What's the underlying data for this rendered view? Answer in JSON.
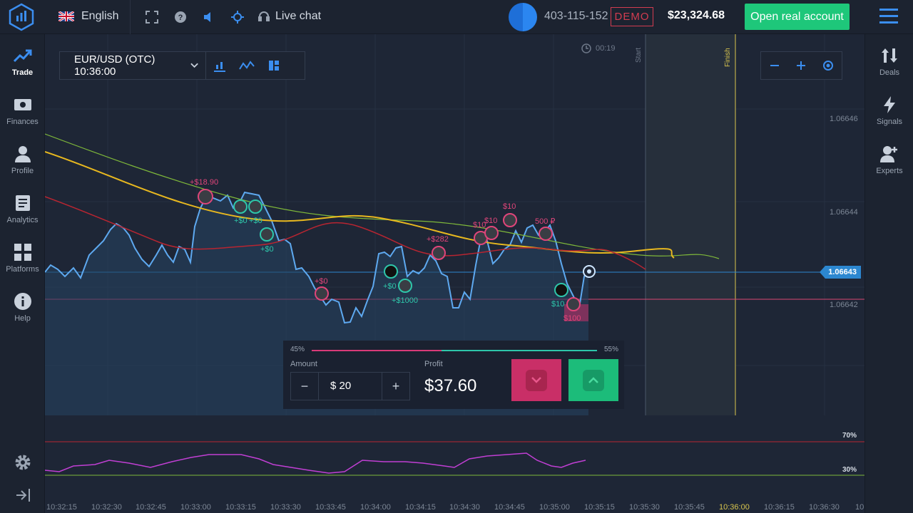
{
  "header": {
    "language": "English",
    "live_chat": "Live chat",
    "user_id": "403-115-152",
    "mode_badge": "DEMO",
    "balance": "$23,324.68",
    "open_real_account": "Open real account",
    "icons": [
      "fullscreen-icon",
      "help-icon",
      "sound-icon",
      "crosshair-icon",
      "headset-icon",
      "menu-icon"
    ]
  },
  "left_nav": [
    {
      "label": "Trade",
      "icon": "trade-chart-icon",
      "active": true
    },
    {
      "label": "Finances",
      "icon": "banknote-icon"
    },
    {
      "label": "Profile",
      "icon": "user-icon"
    },
    {
      "label": "Analytics",
      "icon": "document-icon"
    },
    {
      "label": "Platforms",
      "icon": "grid-icon"
    },
    {
      "label": "Help",
      "icon": "info-icon"
    }
  ],
  "right_nav": [
    {
      "label": "Deals",
      "icon": "sort-arrows-icon"
    },
    {
      "label": "Signals",
      "icon": "lightning-icon"
    },
    {
      "label": "Experts",
      "icon": "add-user-icon"
    }
  ],
  "asset": {
    "name": "EUR/USD (OTC) 10:36:00"
  },
  "timer": "00:19",
  "markers": {
    "start": "Start",
    "finish": "Finish"
  },
  "price_axis": [
    "1.06646",
    "1.06644",
    "1.06642"
  ],
  "current_price": "1.06643",
  "rsi_levels": [
    "70%",
    "30%"
  ],
  "time_axis": [
    "10:32:15",
    "10:32:30",
    "10:32:45",
    "10:33:00",
    "10:33:15",
    "10:33:30",
    "10:33:45",
    "10:34:00",
    "10:34:15",
    "10:34:30",
    "10:34:45",
    "10:35:00",
    "10:35:15",
    "10:35:30",
    "10:35:45",
    "10:36:00",
    "10:36:15",
    "10:36:30",
    "10"
  ],
  "trade_labels": [
    {
      "text": "+$18.90",
      "color": "#e0457a"
    },
    {
      "text": "+$0",
      "color": "#2ec6aa"
    },
    {
      "text": "+$0",
      "color": "#2ec6aa"
    },
    {
      "text": "+$0",
      "color": "#2ec6aa"
    },
    {
      "text": "+$0",
      "color": "#e0457a"
    },
    {
      "text": "+$0",
      "color": "#2ec6aa"
    },
    {
      "text": "+$1000",
      "color": "#2ec6aa"
    },
    {
      "text": "+$282",
      "color": "#e0457a"
    },
    {
      "text": "$10",
      "color": "#e0457a"
    },
    {
      "text": "$10",
      "color": "#e0457a"
    },
    {
      "text": "$10",
      "color": "#e0457a"
    },
    {
      "text": "500 ₽",
      "color": "#e0457a"
    },
    {
      "text": "$10",
      "color": "#2ec6aa"
    },
    {
      "text": "$100",
      "color": "#e0457a"
    }
  ],
  "trade_panel": {
    "put_percent": "45%",
    "call_percent": "55%",
    "amount_label": "Amount",
    "amount_value": "$ 20",
    "profit_label": "Profit",
    "profit_value": "$37.60"
  }
}
